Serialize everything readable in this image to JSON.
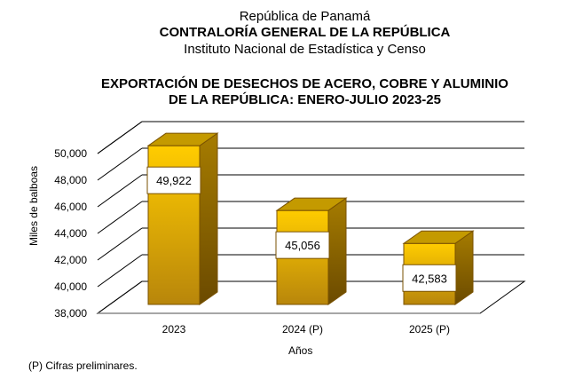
{
  "header": {
    "line1": "República de Panamá",
    "line2": "CONTRALORÍA GENERAL DE LA REPÚBLICA",
    "line3": "Instituto  Nacional de Estadística y Censo"
  },
  "note": "(P) Cifras  preliminares.",
  "chart_data": {
    "type": "bar",
    "title": [
      "EXPORTACIÓN DE DESECHOS DE ACERO, COBRE Y ALUMINIO",
      "DE LA REPÚBLICA: ENERO-JULIO 2023-25"
    ],
    "categories": [
      "2023",
      "2024 (P)",
      "2025 (P)"
    ],
    "values": [
      49922,
      45056,
      42583
    ],
    "value_labels": [
      "49,922",
      "45,056",
      "42,583"
    ],
    "xlabel": "Años",
    "ylabel": "Miles de balboas",
    "ylim": [
      38000,
      50000
    ],
    "yticks": [
      "38,000",
      "40,000",
      "42,000",
      "44,000",
      "46,000",
      "48,000",
      "50,000"
    ],
    "ytick_values": [
      38000,
      40000,
      42000,
      44000,
      46000,
      48000,
      50000
    ],
    "grid": true,
    "style": "3d",
    "colors": {
      "bar_light": "#FFCC00",
      "bar_dark": "#B8860B",
      "side": "#8B6508",
      "top": "#C49A00",
      "edge": "#7A5200"
    }
  }
}
